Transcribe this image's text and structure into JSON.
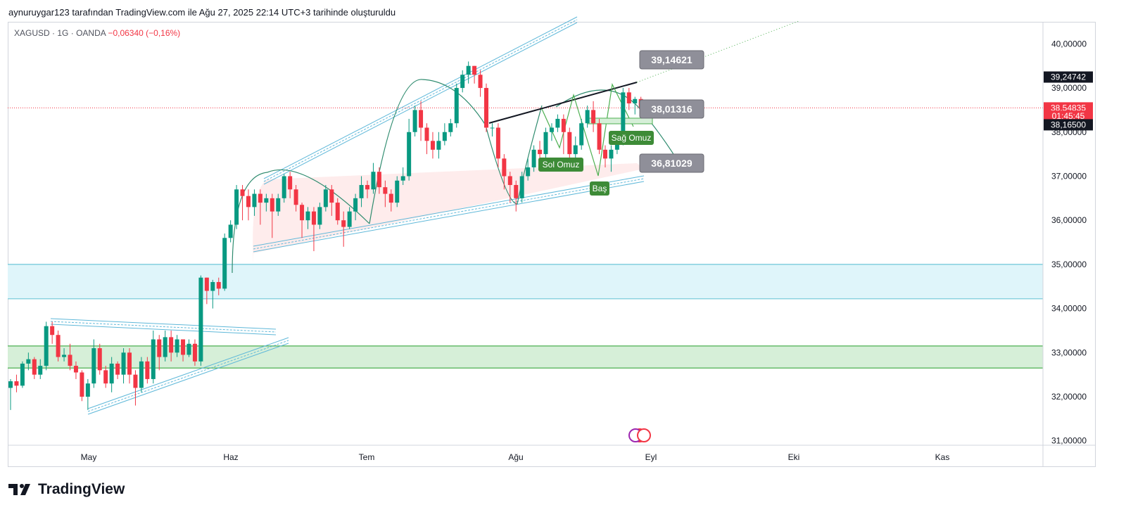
{
  "header": {
    "text": "aynuruygar123 tarafından TradingView.com ile Ağu 27, 2025 22:14 UTC+3 tarihinde oluşturuldu"
  },
  "legend": {
    "symbol": "XAGUSD",
    "sep1": "·",
    "interval": "1G",
    "sep2": "·",
    "source": "OANDA",
    "change": "−0,06340 (−0,16%)"
  },
  "brand": {
    "name": "TradingView"
  },
  "colors": {
    "up": "#089981",
    "down": "#f23645",
    "blue_zone": "#dff5fa",
    "green_zone": "#d6efd8",
    "label_grey": "#8f8f99",
    "label_green": "#3d8b37"
  },
  "chart_data": {
    "type": "candlestick",
    "ylim": [
      30.9,
      40.5
    ],
    "y_ticks": [
      "40,00000",
      "39,00000",
      "38,00000",
      "37,00000",
      "36,00000",
      "35,00000",
      "34,00000",
      "33,00000",
      "32,00000",
      "31,00000"
    ],
    "x_ticks": [
      "May",
      "Haz",
      "Tem",
      "Ağu",
      "Eyl",
      "Eki",
      "Kas"
    ],
    "price_tags": [
      {
        "text": "39,24742",
        "value": 39.24742,
        "color": "#131722"
      },
      {
        "text": "38,54835",
        "value": 38.54835,
        "color": "#f23645"
      },
      {
        "text": "01:45:45",
        "value": 38.36,
        "color": "#f23645"
      },
      {
        "text": "38,16500",
        "value": 38.165,
        "color": "#131722"
      }
    ],
    "current_price": 38.54835,
    "zones": [
      {
        "name": "resistance-zone",
        "low": 34.22,
        "high": 35.0,
        "color": "#dff5fa",
        "border": "#6ec6d8"
      },
      {
        "name": "support-zone",
        "low": 32.65,
        "high": 33.15,
        "color": "#d6efd8",
        "border": "#4caf50"
      }
    ],
    "price_labels": [
      {
        "text": "39,14621",
        "value": 39.14621
      },
      {
        "text": "38,01316",
        "value": 38.01316
      },
      {
        "text": "36,81029",
        "value": 36.81029
      }
    ],
    "pattern_labels": [
      "Sol Omuz",
      "Baş",
      "Sağ Omuz"
    ],
    "candles": [
      [
        32.2,
        32.35,
        31.7,
        32.4
      ],
      [
        32.35,
        32.25,
        32.1,
        32.5
      ],
      [
        32.25,
        32.75,
        32.2,
        32.8
      ],
      [
        32.75,
        32.85,
        32.6,
        33.0
      ],
      [
        32.85,
        32.5,
        32.4,
        32.9
      ],
      [
        32.5,
        32.7,
        32.4,
        32.85
      ],
      [
        32.7,
        33.6,
        32.6,
        33.7
      ],
      [
        33.6,
        33.4,
        33.2,
        33.7
      ],
      [
        33.4,
        32.9,
        32.8,
        33.5
      ],
      [
        32.9,
        32.95,
        32.8,
        33.1
      ],
      [
        32.95,
        32.7,
        32.6,
        33.2
      ],
      [
        32.7,
        32.55,
        32.4,
        32.8
      ],
      [
        32.55,
        32.0,
        31.9,
        32.6
      ],
      [
        32.0,
        32.3,
        31.7,
        32.4
      ],
      [
        32.3,
        33.1,
        32.2,
        33.3
      ],
      [
        33.1,
        32.6,
        32.5,
        33.2
      ],
      [
        32.6,
        32.3,
        32.2,
        32.7
      ],
      [
        32.3,
        32.75,
        32.1,
        32.9
      ],
      [
        32.75,
        32.5,
        32.4,
        32.8
      ],
      [
        32.5,
        33.0,
        32.3,
        33.1
      ],
      [
        33.0,
        32.5,
        32.3,
        33.1
      ],
      [
        32.5,
        32.2,
        31.8,
        32.6
      ],
      [
        32.2,
        32.8,
        32.1,
        32.9
      ],
      [
        32.8,
        32.4,
        32.3,
        32.9
      ],
      [
        32.4,
        33.3,
        32.3,
        33.5
      ],
      [
        33.3,
        32.9,
        32.6,
        33.4
      ],
      [
        32.9,
        33.35,
        32.8,
        33.5
      ],
      [
        33.35,
        33.0,
        32.8,
        33.5
      ],
      [
        33.0,
        33.3,
        32.9,
        33.4
      ],
      [
        33.3,
        32.95,
        32.8,
        33.3
      ],
      [
        32.95,
        33.2,
        32.9,
        33.3
      ],
      [
        33.2,
        32.8,
        32.7,
        33.3
      ],
      [
        32.8,
        34.7,
        32.7,
        34.75
      ],
      [
        34.7,
        34.4,
        34.1,
        34.7
      ],
      [
        34.4,
        34.6,
        34.0,
        34.65
      ],
      [
        34.6,
        34.45,
        34.3,
        34.7
      ],
      [
        34.45,
        35.6,
        34.4,
        35.7
      ],
      [
        35.6,
        35.9,
        35.5,
        36.0
      ],
      [
        35.9,
        36.7,
        35.8,
        36.8
      ],
      [
        36.7,
        36.55,
        36.0,
        36.8
      ],
      [
        36.55,
        36.3,
        36.0,
        36.7
      ],
      [
        36.3,
        36.6,
        36.1,
        36.7
      ],
      [
        36.6,
        36.4,
        35.9,
        36.7
      ],
      [
        36.4,
        36.5,
        36.2,
        36.6
      ],
      [
        36.5,
        36.2,
        35.6,
        36.6
      ],
      [
        36.2,
        36.5,
        36.1,
        36.6
      ],
      [
        36.5,
        37.0,
        36.4,
        37.05
      ],
      [
        37.0,
        36.7,
        36.5,
        37.1
      ],
      [
        36.7,
        36.35,
        36.2,
        36.8
      ],
      [
        36.35,
        36.0,
        35.6,
        36.4
      ],
      [
        36.0,
        36.2,
        35.8,
        36.3
      ],
      [
        36.2,
        35.9,
        35.3,
        36.3
      ],
      [
        35.9,
        36.3,
        35.8,
        36.4
      ],
      [
        36.3,
        36.7,
        36.2,
        36.8
      ],
      [
        36.7,
        36.4,
        36.1,
        36.8
      ],
      [
        36.4,
        36.0,
        35.9,
        36.5
      ],
      [
        36.0,
        35.85,
        35.4,
        36.2
      ],
      [
        35.85,
        36.2,
        35.8,
        36.3
      ],
      [
        36.2,
        36.5,
        36.0,
        36.6
      ],
      [
        36.5,
        36.8,
        36.3,
        37.0
      ],
      [
        36.8,
        36.7,
        36.5,
        36.9
      ],
      [
        36.7,
        37.1,
        36.6,
        37.3
      ],
      [
        37.1,
        36.75,
        36.6,
        37.2
      ],
      [
        36.75,
        36.6,
        36.3,
        36.9
      ],
      [
        36.6,
        36.4,
        36.2,
        36.7
      ],
      [
        36.4,
        36.9,
        36.3,
        37.0
      ],
      [
        36.9,
        37.0,
        36.8,
        37.2
      ],
      [
        37.0,
        38.0,
        36.9,
        38.3
      ],
      [
        38.0,
        38.5,
        37.9,
        38.6
      ],
      [
        38.5,
        38.1,
        37.8,
        38.7
      ],
      [
        38.1,
        37.8,
        37.5,
        38.2
      ],
      [
        37.8,
        37.6,
        37.4,
        38.0
      ],
      [
        37.6,
        37.8,
        37.4,
        38.0
      ],
      [
        37.8,
        38.0,
        37.7,
        38.2
      ],
      [
        38.0,
        38.2,
        37.9,
        38.3
      ],
      [
        38.2,
        39.0,
        38.1,
        39.1
      ],
      [
        39.0,
        39.3,
        38.9,
        39.4
      ],
      [
        39.3,
        39.5,
        39.1,
        39.6
      ],
      [
        39.5,
        39.3,
        39.1,
        39.5
      ],
      [
        39.3,
        39.0,
        38.8,
        39.4
      ],
      [
        39.0,
        38.1,
        38.0,
        39.1
      ],
      [
        38.1,
        38.1,
        37.9,
        38.2
      ],
      [
        38.1,
        37.4,
        37.2,
        38.2
      ],
      [
        37.4,
        37.0,
        36.7,
        37.5
      ],
      [
        37.0,
        36.8,
        36.4,
        37.1
      ],
      [
        36.8,
        36.5,
        36.2,
        36.9
      ],
      [
        36.5,
        37.0,
        36.4,
        37.1
      ],
      [
        37.0,
        37.2,
        36.9,
        37.4
      ],
      [
        37.2,
        37.6,
        37.1,
        37.7
      ],
      [
        37.6,
        37.5,
        37.3,
        37.8
      ],
      [
        37.5,
        38.0,
        37.4,
        38.1
      ],
      [
        38.0,
        38.1,
        37.8,
        38.2
      ],
      [
        38.1,
        38.3,
        38.0,
        38.4
      ],
      [
        38.3,
        38.0,
        37.5,
        38.4
      ],
      [
        38.0,
        37.5,
        37.4,
        38.1
      ],
      [
        37.5,
        37.7,
        37.4,
        37.9
      ],
      [
        37.7,
        38.2,
        37.6,
        38.3
      ],
      [
        38.2,
        38.5,
        38.1,
        38.6
      ],
      [
        38.5,
        38.2,
        38.0,
        38.7
      ],
      [
        38.2,
        37.6,
        37.5,
        38.3
      ],
      [
        37.6,
        37.4,
        37.2,
        37.7
      ],
      [
        37.4,
        37.6,
        37.1,
        37.7
      ],
      [
        37.6,
        37.8,
        37.5,
        37.9
      ],
      [
        37.8,
        38.9,
        37.7,
        39.0
      ],
      [
        38.9,
        38.65,
        38.5,
        39.0
      ],
      [
        38.65,
        38.75,
        38.4,
        38.8
      ],
      [
        38.75,
        38.55,
        38.45,
        38.8
      ]
    ]
  }
}
